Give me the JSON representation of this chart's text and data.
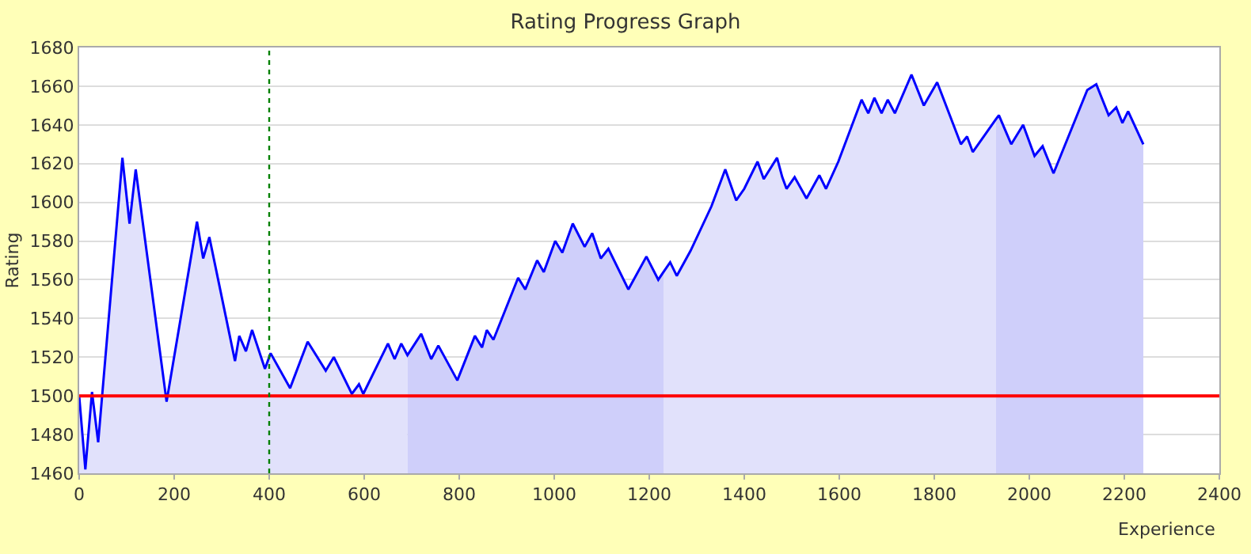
{
  "chart_data": {
    "type": "line",
    "title": "Rating Progress Graph",
    "xlabel": "Experience",
    "ylabel": "Rating",
    "xlim": [
      0,
      2400
    ],
    "xticks": [
      0,
      200,
      400,
      600,
      800,
      1000,
      1200,
      1400,
      1600,
      1800,
      2000,
      2200,
      2400
    ],
    "ylim": [
      1460,
      1680
    ],
    "yticks": [
      1460,
      1480,
      1500,
      1520,
      1540,
      1560,
      1580,
      1600,
      1620,
      1640,
      1660,
      1680
    ],
    "grid": "y",
    "marker": "none",
    "line_style": "solid",
    "ref_lines": [
      {
        "axis": "y",
        "value": 1500,
        "color": "#ff0000",
        "line_style": "solid"
      },
      {
        "axis": "x",
        "value": 400,
        "color": "#008000",
        "line_style": "dotted"
      }
    ],
    "series": [
      {
        "type": "area",
        "color": "#e1e1fb",
        "x": [
          0,
          13,
          27,
          40,
          91,
          106,
          119,
          184,
          248,
          261,
          274,
          328,
          337,
          351,
          364,
          391,
          403,
          444,
          481,
          519,
          536,
          574,
          589,
          598,
          650,
          664,
          678,
          691
        ],
        "values": [
          1500,
          1462,
          1502,
          1476,
          1623,
          1589,
          1617,
          1497,
          1590,
          1571,
          1582,
          1518,
          1531,
          1523,
          1534,
          1514,
          1522,
          1504,
          1528,
          1513,
          1520,
          1501,
          1506,
          1501,
          1527,
          1519,
          1527,
          1521
        ]
      },
      {
        "type": "area",
        "color": "#cfcffa",
        "x": [
          691,
          720,
          741,
          756,
          796,
          833,
          848,
          858,
          872,
          924,
          939,
          964,
          978,
          1002,
          1017,
          1039,
          1064,
          1080,
          1098,
          1114,
          1156,
          1194,
          1219,
          1230
        ],
        "values": [
          1521,
          1532,
          1519,
          1526,
          1508,
          1531,
          1525,
          1534,
          1529,
          1561,
          1555,
          1570,
          1564,
          1580,
          1574,
          1589,
          1577,
          1584,
          1571,
          1576,
          1555,
          1572,
          1560,
          1564
        ]
      },
      {
        "type": "area",
        "color": "#e1e1fb",
        "x": [
          1230,
          1244,
          1258,
          1287,
          1331,
          1360,
          1383,
          1400,
          1428,
          1441,
          1469,
          1480,
          1489,
          1506,
          1531,
          1558,
          1572,
          1598,
          1647,
          1661,
          1674,
          1689,
          1702,
          1717,
          1752,
          1778,
          1806,
          1856,
          1869,
          1881,
          1930
        ],
        "values": [
          1564,
          1569,
          1562,
          1575,
          1598,
          1617,
          1601,
          1607,
          1621,
          1612,
          1623,
          1613,
          1607,
          1613,
          1602,
          1614,
          1607,
          1621,
          1653,
          1646,
          1654,
          1646,
          1653,
          1646,
          1666,
          1650,
          1662,
          1630,
          1634,
          1626,
          1643
        ]
      },
      {
        "type": "area",
        "color": "#cfcffa",
        "x": [
          1930,
          1936,
          1962,
          1987,
          2011,
          2028,
          2051,
          2122,
          2141,
          2167,
          2183,
          2196,
          2208,
          2240
        ],
        "values": [
          1643,
          1645,
          1630,
          1640,
          1624,
          1629,
          1615,
          1658,
          1661,
          1645,
          1649,
          1641,
          1647,
          1630
        ]
      },
      {
        "color": "#0000ff",
        "x": [
          0,
          13,
          27,
          40,
          91,
          106,
          119,
          184,
          248,
          261,
          274,
          328,
          337,
          351,
          364,
          391,
          403,
          444,
          481,
          519,
          536,
          574,
          589,
          598,
          650,
          664,
          678,
          691,
          720,
          741,
          756,
          796,
          833,
          848,
          858,
          872,
          924,
          939,
          964,
          978,
          1002,
          1017,
          1039,
          1064,
          1080,
          1098,
          1114,
          1156,
          1194,
          1219,
          1230,
          1244,
          1258,
          1287,
          1331,
          1360,
          1383,
          1400,
          1428,
          1441,
          1469,
          1480,
          1489,
          1506,
          1531,
          1558,
          1572,
          1598,
          1647,
          1661,
          1674,
          1689,
          1702,
          1717,
          1752,
          1778,
          1806,
          1856,
          1869,
          1881,
          1930,
          1936,
          1962,
          1987,
          2011,
          2028,
          2051,
          2122,
          2141,
          2167,
          2183,
          2196,
          2208,
          2240
        ],
        "values": [
          1500,
          1462,
          1502,
          1476,
          1623,
          1589,
          1617,
          1497,
          1590,
          1571,
          1582,
          1518,
          1531,
          1523,
          1534,
          1514,
          1522,
          1504,
          1528,
          1513,
          1520,
          1501,
          1506,
          1501,
          1527,
          1519,
          1527,
          1521,
          1532,
          1519,
          1526,
          1508,
          1531,
          1525,
          1534,
          1529,
          1561,
          1555,
          1570,
          1564,
          1580,
          1574,
          1589,
          1577,
          1584,
          1571,
          1576,
          1555,
          1572,
          1560,
          1564,
          1569,
          1562,
          1575,
          1598,
          1617,
          1601,
          1607,
          1621,
          1612,
          1623,
          1613,
          1607,
          1613,
          1602,
          1614,
          1607,
          1621,
          1653,
          1646,
          1654,
          1646,
          1653,
          1646,
          1666,
          1650,
          1662,
          1630,
          1634,
          1626,
          1643,
          1645,
          1630,
          1640,
          1624,
          1629,
          1615,
          1658,
          1661,
          1645,
          1649,
          1641,
          1647,
          1630
        ]
      }
    ]
  }
}
